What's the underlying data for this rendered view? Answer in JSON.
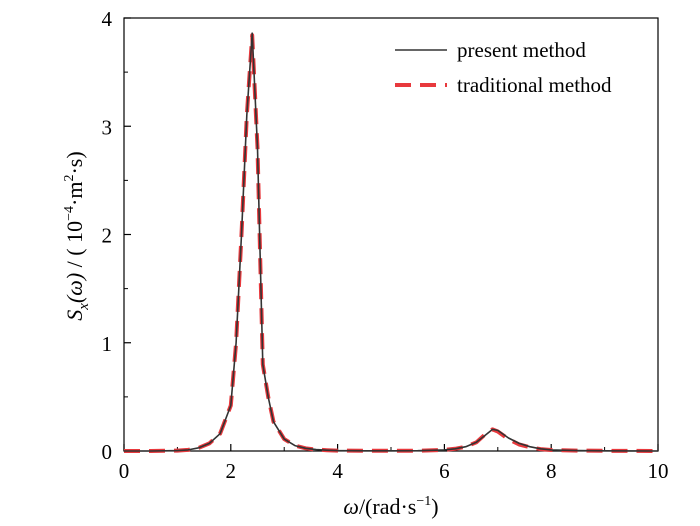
{
  "chart_data": {
    "type": "line",
    "xlim": [
      0,
      10
    ],
    "ylim": [
      0,
      4
    ],
    "x_ticks": [
      "0",
      "2",
      "4",
      "6",
      "8",
      "10"
    ],
    "y_ticks": [
      "0",
      "1",
      "2",
      "3",
      "4"
    ],
    "xlabel": {
      "symbol": "ω",
      "text": "/(rad·s",
      "sup": "−1",
      "close": ")"
    },
    "ylabel": {
      "symbol": "S",
      "sub": "x",
      "paren": "(ω)",
      "text": " / ( 10",
      "sup1": "−4",
      "mid": "·m",
      "sup2": "2",
      "end": "·s)"
    },
    "legend_position": "top-right",
    "grid": false,
    "series": [
      {
        "name": "present method",
        "color": "#333333",
        "style": "solid",
        "x": [
          0,
          0.5,
          1.0,
          1.2,
          1.4,
          1.6,
          1.8,
          2.0,
          2.1,
          2.2,
          2.3,
          2.4,
          2.5,
          2.6,
          2.7,
          2.8,
          3.0,
          3.2,
          3.4,
          3.6,
          3.8,
          4.0,
          4.5,
          5.0,
          5.5,
          6.0,
          6.2,
          6.4,
          6.6,
          6.8,
          6.9,
          7.0,
          7.2,
          7.4,
          7.6,
          7.8,
          8.0,
          8.5,
          9.0,
          9.5,
          10.0
        ],
        "y": [
          0,
          0,
          0.004,
          0.01,
          0.03,
          0.07,
          0.16,
          0.42,
          1.0,
          2.0,
          3.1,
          3.86,
          2.8,
          0.8,
          0.5,
          0.27,
          0.11,
          0.05,
          0.025,
          0.013,
          0.007,
          0.004,
          0.002,
          0.002,
          0.003,
          0.01,
          0.02,
          0.04,
          0.08,
          0.16,
          0.2,
          0.19,
          0.12,
          0.07,
          0.04,
          0.02,
          0.01,
          0.004,
          0.002,
          0.001,
          0
        ]
      },
      {
        "name": "traditional method",
        "color": "#e8393d",
        "style": "dashed",
        "x": [
          0,
          0.5,
          1.0,
          1.2,
          1.4,
          1.6,
          1.8,
          2.0,
          2.1,
          2.2,
          2.3,
          2.4,
          2.5,
          2.6,
          2.7,
          2.8,
          3.0,
          3.2,
          3.4,
          3.6,
          3.8,
          4.0,
          4.5,
          5.0,
          5.5,
          6.0,
          6.2,
          6.4,
          6.6,
          6.8,
          6.9,
          7.0,
          7.2,
          7.4,
          7.6,
          7.8,
          8.0,
          8.5,
          9.0,
          9.5,
          10.0
        ],
        "y": [
          0,
          0,
          0.004,
          0.01,
          0.03,
          0.07,
          0.16,
          0.42,
          1.0,
          2.0,
          3.1,
          3.84,
          2.8,
          0.8,
          0.5,
          0.27,
          0.11,
          0.05,
          0.025,
          0.013,
          0.007,
          0.004,
          0.002,
          0.002,
          0.003,
          0.01,
          0.02,
          0.04,
          0.08,
          0.17,
          0.2,
          0.18,
          0.11,
          0.06,
          0.035,
          0.018,
          0.009,
          0.004,
          0.002,
          0.001,
          0
        ]
      }
    ]
  }
}
